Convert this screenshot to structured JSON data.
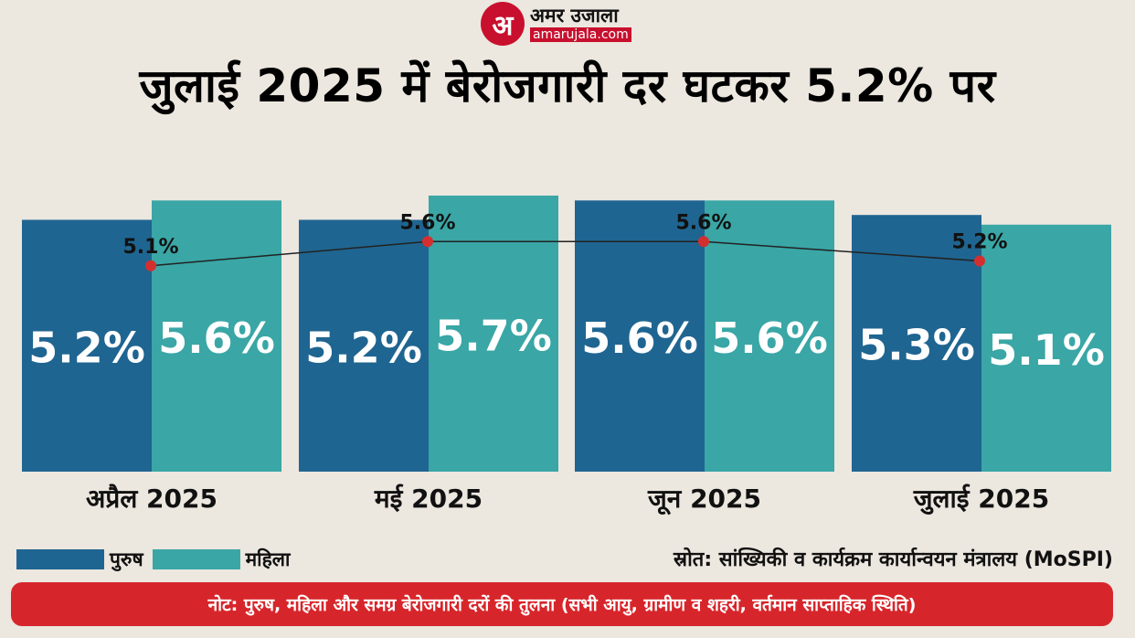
{
  "brand": {
    "mark": "अ",
    "name": "अमर उजाला",
    "url": "amarujala.com"
  },
  "colors": {
    "male": "#1f6591",
    "female": "#3aa6a6",
    "note_bg": "#d7262b",
    "marker": "#d32f2f"
  },
  "chart_data": {
    "type": "bar",
    "title": "जुलाई 2025 में बेरोजगारी दर घटकर 5.2% पर",
    "categories": [
      "अप्रैल 2025",
      "मई 2025",
      "जून 2025",
      "जुलाई 2025"
    ],
    "series": [
      {
        "name": "पुरुष",
        "values": [
          5.2,
          5.2,
          5.6,
          5.3
        ],
        "labels": [
          "5.2%",
          "5.2%",
          "5.6%",
          "5.3%"
        ]
      },
      {
        "name": "महिला",
        "values": [
          5.6,
          5.7,
          5.6,
          5.1
        ],
        "labels": [
          "5.6%",
          "5.7%",
          "5.6%",
          "5.1%"
        ]
      }
    ],
    "overall_line": {
      "values": [
        5.1,
        5.6,
        5.6,
        5.2
      ],
      "labels": [
        "5.1%",
        "5.6%",
        "5.6%",
        "5.2%"
      ]
    },
    "unit": "%"
  },
  "legend": {
    "male": "पुरुष",
    "female": "महिला"
  },
  "source": "स्रोत: सांख्यिकी व कार्यक्रम कार्यान्वयन मंत्रालय (MoSPI)",
  "note": "नोट: पुरुष, महिला और समग्र बेरोजगारी दरों की तुलना (सभी आयु, ग्रामीण व शहरी, वर्तमान साप्ताहिक स्थिति)"
}
